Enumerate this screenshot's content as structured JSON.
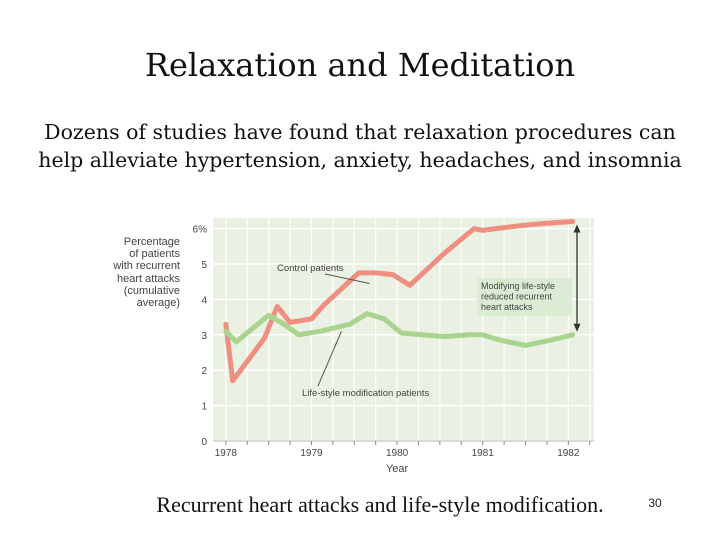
{
  "slide": {
    "title": "Relaxation and Meditation",
    "subtitle_line1": "Dozens of studies have found that relaxation procedures can",
    "subtitle_line2": "help alleviate hypertension, anxiety, headaches, and insomnia",
    "caption": "Recurrent heart attacks and life-style modification.",
    "page_number": "30"
  },
  "chart_data": {
    "type": "line",
    "title": "",
    "xlabel": "Year",
    "ylabel_lines": [
      "Percentage",
      "of patients",
      "with recurrent",
      "heart attacks",
      "(cumulative",
      "average)"
    ],
    "x_ticks": [
      "1978",
      "1979",
      "1980",
      "1981",
      "1982"
    ],
    "y_ticks": [
      "0",
      "1",
      "2",
      "3",
      "4",
      "5",
      "6%"
    ],
    "ylim": [
      0,
      6.3
    ],
    "xlim": [
      1977.85,
      1982.3
    ],
    "grid": true,
    "colors": {
      "plot_bg": "#eaf1e2",
      "grid": "#ffffff",
      "control": "#ef8f82",
      "lifestyle": "#a8d48f",
      "annotation_bg": "#dcecd4",
      "arrow": "#333333",
      "text": "#444444"
    },
    "series": [
      {
        "name": "Control patients",
        "x": [
          1978.0,
          1978.08,
          1978.45,
          1978.6,
          1978.75,
          1979.0,
          1979.15,
          1979.55,
          1979.75,
          1979.95,
          1980.15,
          1980.55,
          1980.9,
          1981.0,
          1981.15,
          1981.5,
          1981.75,
          1982.05
        ],
        "values": [
          3.3,
          1.7,
          2.9,
          3.8,
          3.35,
          3.45,
          3.85,
          4.75,
          4.75,
          4.7,
          4.4,
          5.3,
          6.0,
          5.95,
          6.0,
          6.1,
          6.15,
          6.2
        ]
      },
      {
        "name": "Life-style modification patients",
        "x": [
          1978.0,
          1978.12,
          1978.5,
          1978.68,
          1978.85,
          1979.1,
          1979.45,
          1979.65,
          1979.85,
          1980.05,
          1980.55,
          1980.85,
          1981.0,
          1981.2,
          1981.5,
          1981.8,
          1982.05
        ],
        "values": [
          3.1,
          2.8,
          3.55,
          3.3,
          3.0,
          3.1,
          3.3,
          3.6,
          3.45,
          3.05,
          2.95,
          3.0,
          3.0,
          2.85,
          2.7,
          2.85,
          3.0
        ]
      }
    ],
    "annotations": [
      {
        "text": "Control patients",
        "target_series": "Control patients"
      },
      {
        "text": "Life-style modification patients",
        "target_series": "Life-style modification patients"
      },
      {
        "text_lines": [
          "Modifying life-style",
          "reduced recurrent",
          "heart attacks"
        ],
        "boxed": true,
        "arrow_between_series_at_x": 1982.05
      }
    ]
  }
}
